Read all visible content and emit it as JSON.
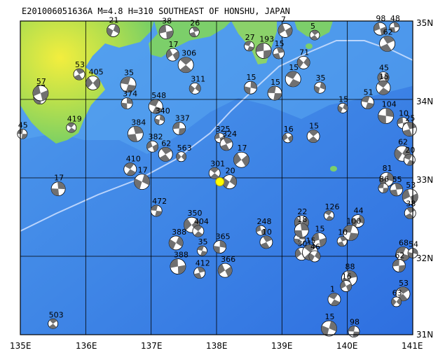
{
  "title": "E201006051636A  M=4.8  H=310  SOUTHEAST OF HONSHU, JAPAN",
  "lon_labels": [
    "135E",
    "136E",
    "137E",
    "138E",
    "139E",
    "140E",
    "141E"
  ],
  "lat_labels": [
    "35N",
    "34N",
    "33N",
    "32N",
    "31N"
  ],
  "extent": {
    "lon": [
      135,
      141
    ],
    "lat": [
      31,
      35
    ]
  },
  "colors": {
    "land_low": "#7ccf6a",
    "land_high": "#e8e84a",
    "sea_shallow": "#6fb4f0",
    "sea_deep": "#2e6fe0",
    "trench": "#c8d8ff",
    "grid": "#000000",
    "epicenter": "#ffff00"
  },
  "epicenter": {
    "lon": 138.05,
    "lat": 32.95
  },
  "events": [
    {
      "lon": 135.03,
      "lat": 33.56,
      "label": "45"
    },
    {
      "lon": 135.3,
      "lat": 34.02,
      "label": "67"
    },
    {
      "lon": 135.31,
      "lat": 34.08,
      "label": "57"
    },
    {
      "lon": 135.9,
      "lat": 34.32,
      "label": "53"
    },
    {
      "lon": 136.11,
      "lat": 34.21,
      "label": "405"
    },
    {
      "lon": 135.78,
      "lat": 33.64,
      "label": "419"
    },
    {
      "lon": 136.42,
      "lat": 34.88,
      "label": "21"
    },
    {
      "lon": 136.65,
      "lat": 34.19,
      "label": "35"
    },
    {
      "lon": 136.63,
      "lat": 33.95,
      "label": "374"
    },
    {
      "lon": 137.23,
      "lat": 34.86,
      "label": "38"
    },
    {
      "lon": 137.66,
      "lat": 34.86,
      "label": "26"
    },
    {
      "lon": 137.33,
      "lat": 34.57,
      "label": "17"
    },
    {
      "lon": 137.53,
      "lat": 34.44,
      "label": "306"
    },
    {
      "lon": 137.67,
      "lat": 34.14,
      "label": "311"
    },
    {
      "lon": 137.07,
      "lat": 33.91,
      "label": "548"
    },
    {
      "lon": 137.13,
      "lat": 33.74,
      "label": "340"
    },
    {
      "lon": 137.43,
      "lat": 33.63,
      "label": "337"
    },
    {
      "lon": 136.76,
      "lat": 33.56,
      "label": "384"
    },
    {
      "lon": 137.02,
      "lat": 33.4,
      "label": "382"
    },
    {
      "lon": 137.22,
      "lat": 33.3,
      "label": "62"
    },
    {
      "lon": 137.46,
      "lat": 33.27,
      "label": "563"
    },
    {
      "lon": 136.68,
      "lat": 33.11,
      "label": "410"
    },
    {
      "lon": 136.86,
      "lat": 32.95,
      "label": "17"
    },
    {
      "lon": 137.08,
      "lat": 32.58,
      "label": "472"
    },
    {
      "lon": 135.58,
      "lat": 32.86,
      "label": "17"
    },
    {
      "lon": 138.05,
      "lat": 33.51,
      "label": "325"
    },
    {
      "lon": 138.15,
      "lat": 33.43,
      "label": "324"
    },
    {
      "lon": 138.38,
      "lat": 33.23,
      "label": "17"
    },
    {
      "lon": 137.97,
      "lat": 33.06,
      "label": "301"
    },
    {
      "lon": 138.2,
      "lat": 32.95,
      "label": "20"
    },
    {
      "lon": 138.5,
      "lat": 34.68,
      "label": "27"
    },
    {
      "lon": 138.52,
      "lat": 34.15,
      "label": "15"
    },
    {
      "lon": 138.72,
      "lat": 34.62,
      "label": "193"
    },
    {
      "lon": 138.95,
      "lat": 34.59,
      "label": "15"
    },
    {
      "lon": 139.05,
      "lat": 34.88,
      "label": "7"
    },
    {
      "lon": 139.5,
      "lat": 34.82,
      "label": "5"
    },
    {
      "lon": 139.33,
      "lat": 34.47,
      "label": "71"
    },
    {
      "lon": 139.17,
      "lat": 34.26,
      "label": "15"
    },
    {
      "lon": 139.58,
      "lat": 34.15,
      "label": "35"
    },
    {
      "lon": 138.89,
      "lat": 34.08,
      "label": "15"
    },
    {
      "lon": 140.72,
      "lat": 34.92,
      "label": "48"
    },
    {
      "lon": 140.5,
      "lat": 34.9,
      "label": "98"
    },
    {
      "lon": 140.61,
      "lat": 34.71,
      "label": "62"
    },
    {
      "lon": 140.55,
      "lat": 34.28,
      "label": "45"
    },
    {
      "lon": 140.55,
      "lat": 34.15,
      "label": "15"
    },
    {
      "lon": 139.93,
      "lat": 33.89,
      "label": "15"
    },
    {
      "lon": 140.31,
      "lat": 33.96,
      "label": "51"
    },
    {
      "lon": 140.59,
      "lat": 33.79,
      "label": "104"
    },
    {
      "lon": 140.85,
      "lat": 33.7,
      "label": "10"
    },
    {
      "lon": 140.95,
      "lat": 33.62,
      "label": "25"
    },
    {
      "lon": 139.09,
      "lat": 33.51,
      "label": "16"
    },
    {
      "lon": 139.48,
      "lat": 33.53,
      "label": "15"
    },
    {
      "lon": 140.84,
      "lat": 33.31,
      "label": "62"
    },
    {
      "lon": 140.95,
      "lat": 33.23,
      "label": "20"
    },
    {
      "lon": 140.6,
      "lat": 32.98,
      "label": "81"
    },
    {
      "lon": 140.55,
      "lat": 32.87,
      "label": "86"
    },
    {
      "lon": 140.75,
      "lat": 32.85,
      "label": "55"
    },
    {
      "lon": 140.96,
      "lat": 32.76,
      "label": "53"
    },
    {
      "lon": 140.96,
      "lat": 32.55,
      "label": "38"
    },
    {
      "lon": 139.3,
      "lat": 32.43,
      "label": "22"
    },
    {
      "lon": 139.72,
      "lat": 32.52,
      "label": "126"
    },
    {
      "lon": 140.16,
      "lat": 32.45,
      "label": "44"
    },
    {
      "lon": 140.05,
      "lat": 32.3,
      "label": "100"
    },
    {
      "lon": 139.27,
      "lat": 32.22,
      "label": "18"
    },
    {
      "lon": 139.57,
      "lat": 32.21,
      "label": "15"
    },
    {
      "lon": 139.92,
      "lat": 32.19,
      "label": "10"
    },
    {
      "lon": 139.3,
      "lat": 32.03,
      "label": "301"
    },
    {
      "lon": 139.43,
      "lat": 32.05,
      "label": "15"
    },
    {
      "lon": 139.5,
      "lat": 32.0,
      "label": "46"
    },
    {
      "lon": 140.85,
      "lat": 32.03,
      "label": "68"
    },
    {
      "lon": 141.0,
      "lat": 32.04,
      "label": "54"
    },
    {
      "lon": 140.79,
      "lat": 31.88,
      "label": "62"
    },
    {
      "lon": 140.03,
      "lat": 31.72,
      "label": "88"
    },
    {
      "lon": 139.98,
      "lat": 31.62,
      "label": "16"
    },
    {
      "lon": 140.85,
      "lat": 31.52,
      "label": "53"
    },
    {
      "lon": 140.75,
      "lat": 31.42,
      "label": "63"
    },
    {
      "lon": 139.8,
      "lat": 31.45,
      "label": "1"
    },
    {
      "lon": 139.72,
      "lat": 31.08,
      "label": "15"
    },
    {
      "lon": 140.1,
      "lat": 31.04,
      "label": "98"
    },
    {
      "lon": 139.3,
      "lat": 32.33,
      "label": "18"
    },
    {
      "lon": 138.68,
      "lat": 32.33,
      "label": "248"
    },
    {
      "lon": 138.76,
      "lat": 32.18,
      "label": "10"
    },
    {
      "lon": 137.62,
      "lat": 32.4,
      "label": "350"
    },
    {
      "lon": 137.72,
      "lat": 32.32,
      "label": "404"
    },
    {
      "lon": 137.38,
      "lat": 32.17,
      "label": "388"
    },
    {
      "lon": 137.78,
      "lat": 32.07,
      "label": "35"
    },
    {
      "lon": 138.05,
      "lat": 32.12,
      "label": "365"
    },
    {
      "lon": 137.41,
      "lat": 31.87,
      "label": "388"
    },
    {
      "lon": 137.74,
      "lat": 31.79,
      "label": "412"
    },
    {
      "lon": 138.13,
      "lat": 31.82,
      "label": "366"
    },
    {
      "lon": 135.5,
      "lat": 31.14,
      "label": "503"
    }
  ]
}
